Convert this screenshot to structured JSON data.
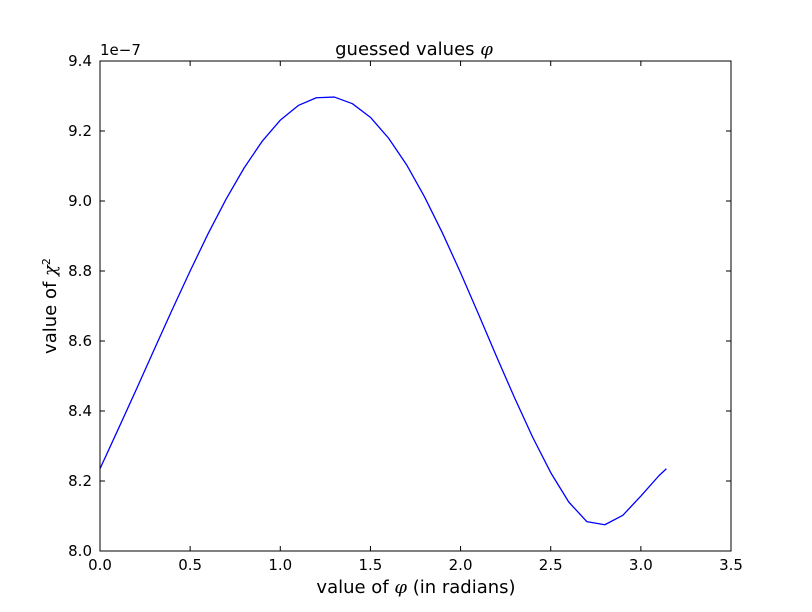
{
  "chart_data": {
    "type": "line",
    "title": "guessed values φ",
    "title_text": "guessed values ",
    "title_symbol": "φ",
    "xlabel": "value of φ (in radians)",
    "xlabel_prefix": "value of ",
    "xlabel_symbol": "φ",
    "xlabel_suffix": " (in radians)",
    "ylabel": "value of χ²",
    "ylabel_prefix": "value of ",
    "ylabel_symbol": "χ",
    "ylabel_sup": "2",
    "offset_text": "1e−7",
    "xlim": [
      0.0,
      3.5
    ],
    "ylim": [
      8.0,
      9.4
    ],
    "y_scale_factor": 1e-07,
    "xticks": [
      0.0,
      0.5,
      1.0,
      1.5,
      2.0,
      2.5,
      3.0,
      3.5
    ],
    "xtick_labels": [
      "0.0",
      "0.5",
      "1.0",
      "1.5",
      "2.0",
      "2.5",
      "3.0",
      "3.5"
    ],
    "yticks": [
      8.0,
      8.2,
      8.4,
      8.6,
      8.8,
      9.0,
      9.2,
      9.4
    ],
    "ytick_labels": [
      "8.0",
      "8.2",
      "8.4",
      "8.6",
      "8.8",
      "9.0",
      "9.2",
      "9.4"
    ],
    "grid": false,
    "series": [
      {
        "color": "#0000ff",
        "x": [
          0.0,
          0.1,
          0.2,
          0.3,
          0.4,
          0.5,
          0.6,
          0.7,
          0.8,
          0.9,
          1.0,
          1.1,
          1.2,
          1.3,
          1.4,
          1.5,
          1.6,
          1.7,
          1.8,
          1.9,
          2.0,
          2.1,
          2.2,
          2.3,
          2.4,
          2.5,
          2.6,
          2.7,
          2.8,
          2.9,
          3.0,
          3.1,
          3.1416
        ],
        "y": [
          8.235,
          8.347,
          8.46,
          8.575,
          8.689,
          8.8,
          8.907,
          9.006,
          9.095,
          9.171,
          9.231,
          9.273,
          9.295,
          9.297,
          9.278,
          9.239,
          9.18,
          9.104,
          9.012,
          8.908,
          8.795,
          8.676,
          8.555,
          8.437,
          8.325,
          8.224,
          8.14,
          8.084,
          8.075,
          8.102,
          8.157,
          8.215,
          8.235
        ]
      }
    ]
  }
}
